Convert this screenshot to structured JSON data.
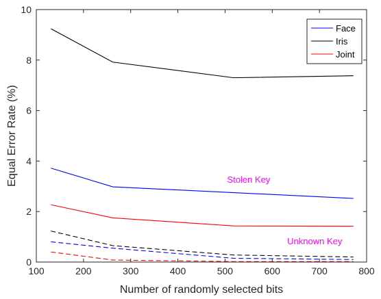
{
  "chart_data": {
    "type": "line",
    "xlabel": "Number of randomly selected bits",
    "ylabel": "Equal Error Rate (%)",
    "xlim": [
      100,
      800
    ],
    "ylim": [
      0,
      10
    ],
    "xticks": [
      100,
      200,
      300,
      400,
      500,
      600,
      700,
      800
    ],
    "yticks": [
      0,
      2,
      4,
      6,
      8,
      10
    ],
    "grid": false,
    "legend_position": "top-right",
    "series": [
      {
        "name": "Face",
        "style": "solid",
        "color": "#0000ff",
        "x": [
          131,
          262,
          518,
          772
        ],
        "y": [
          3.72,
          2.98,
          2.75,
          2.52
        ]
      },
      {
        "name": "Iris",
        "style": "solid",
        "color": "#000000",
        "x": [
          131,
          262,
          518,
          772
        ],
        "y": [
          9.24,
          7.92,
          7.3,
          7.38
        ]
      },
      {
        "name": "Joint",
        "style": "solid",
        "color": "#ff0000",
        "x": [
          131,
          262,
          518,
          772
        ],
        "y": [
          2.27,
          1.75,
          1.43,
          1.42
        ]
      },
      {
        "style": "dashed",
        "color": "#0000ff",
        "x": [
          131,
          262,
          518,
          772
        ],
        "y": [
          0.8,
          0.55,
          0.15,
          0.1
        ]
      },
      {
        "style": "dashed",
        "color": "#000000",
        "x": [
          131,
          262,
          518,
          772
        ],
        "y": [
          1.23,
          0.65,
          0.28,
          0.2
        ]
      },
      {
        "style": "dashed",
        "color": "#ff0000",
        "x": [
          131,
          262,
          518,
          772
        ],
        "y": [
          0.4,
          0.08,
          0.02,
          0.02
        ]
      }
    ],
    "annotations": [
      {
        "text": "Stolen Key",
        "x": 550,
        "y": 3.15,
        "color": "#ff00ff"
      },
      {
        "text": "Unknown Key",
        "x": 690,
        "y": 0.7,
        "color": "#ff00ff"
      }
    ]
  }
}
